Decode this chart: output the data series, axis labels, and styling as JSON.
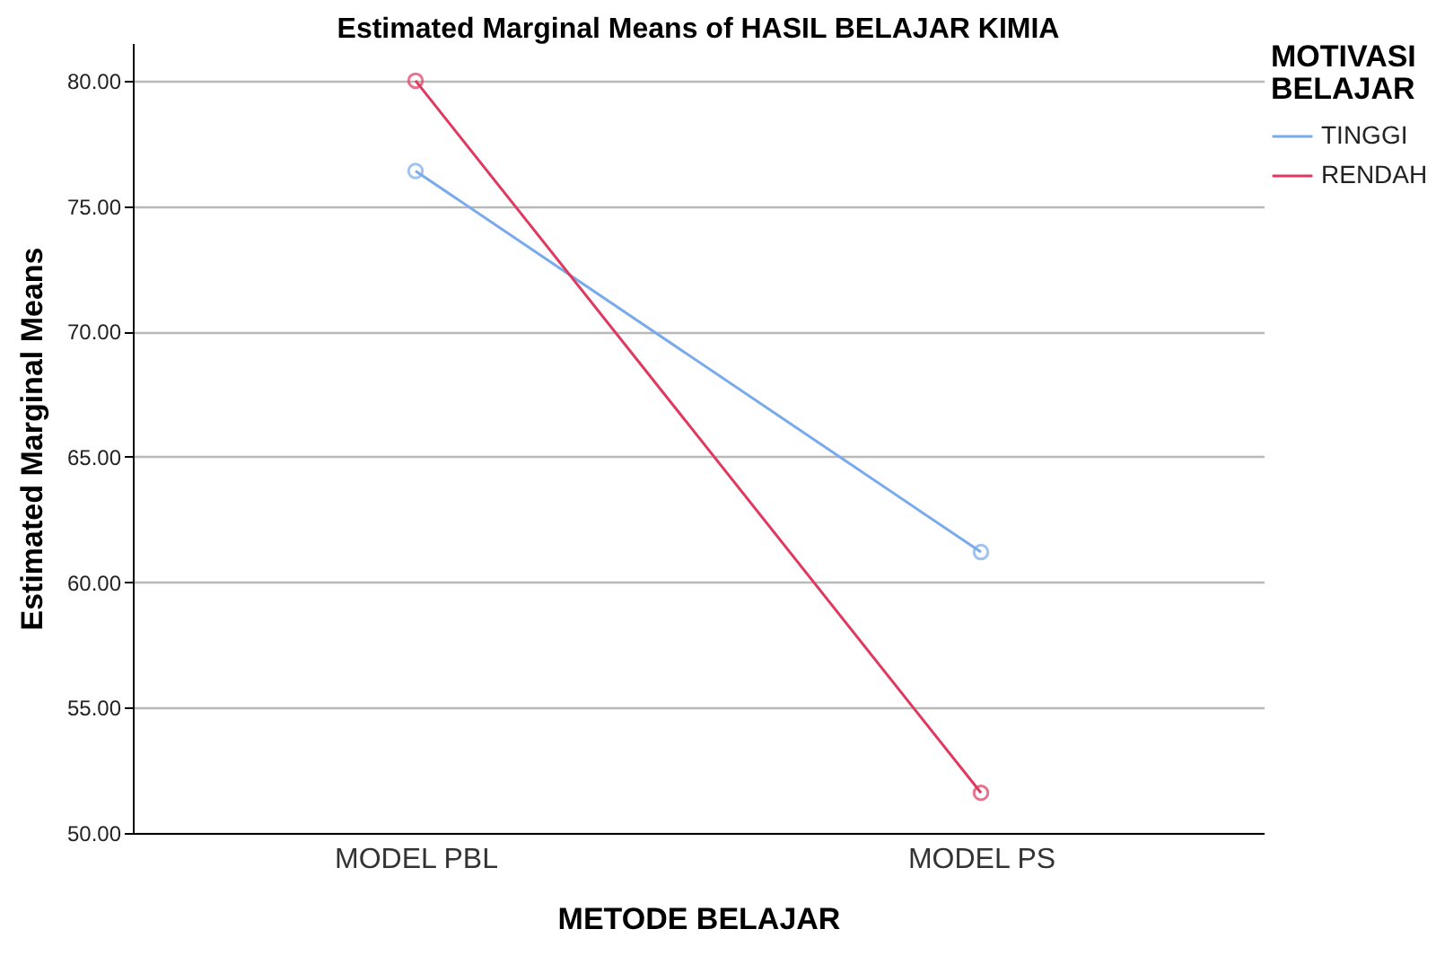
{
  "chart_data": {
    "type": "line",
    "title": "Estimated Marginal Means of HASIL BELAJAR KIMIA",
    "xlabel": "METODE BELAJAR",
    "ylabel": "Estimated Marginal Means",
    "legend_title": "MOTIVASI BELAJAR",
    "categories": [
      "MODEL PBL",
      "MODEL PS"
    ],
    "series": [
      {
        "name": "TINGGI",
        "color": "#79aaec",
        "values": [
          76.4,
          61.2
        ]
      },
      {
        "name": "RENDAH",
        "color": "#e0395f",
        "values": [
          80.0,
          51.6
        ]
      }
    ],
    "ylim": [
      50,
      81.5
    ],
    "yticks": [
      {
        "value": 50,
        "label": "50.00"
      },
      {
        "value": 55,
        "label": "55.00"
      },
      {
        "value": 60,
        "label": "60.00"
      },
      {
        "value": 65,
        "label": "65.00"
      },
      {
        "value": 70,
        "label": "70.00"
      },
      {
        "value": 75,
        "label": "75.00"
      },
      {
        "value": 80,
        "label": "80.00"
      }
    ],
    "grid": "y",
    "legend": "top right",
    "marker": "circle",
    "line_style": "solid"
  }
}
